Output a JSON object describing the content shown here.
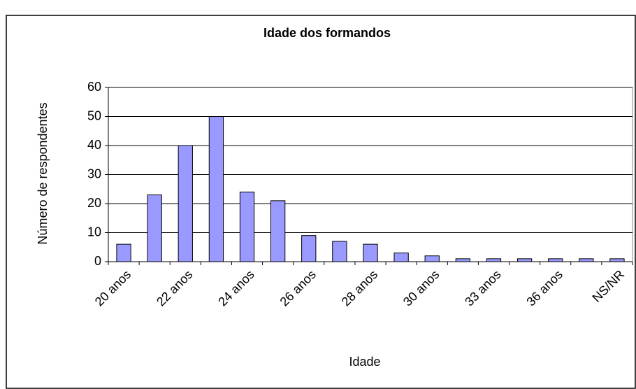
{
  "chart_data": {
    "type": "bar",
    "title": "Idade dos formandos",
    "x_label": "Idade",
    "y_label": "Número de respondentes",
    "categories": [
      "20 anos",
      null,
      "22 anos",
      null,
      "24 anos",
      null,
      "26 anos",
      null,
      "28 anos",
      null,
      "30 anos",
      null,
      "33 anos",
      null,
      "36 anos",
      null,
      "NS/NR"
    ],
    "values": [
      6,
      23,
      40,
      50,
      24,
      21,
      9,
      7,
      6,
      3,
      2,
      1,
      1,
      1,
      1,
      1,
      1
    ],
    "color": "#9999ff",
    "ylim": [
      0,
      60
    ],
    "yticks": [
      0,
      10,
      20,
      30,
      40,
      50,
      60
    ],
    "grid": true
  }
}
